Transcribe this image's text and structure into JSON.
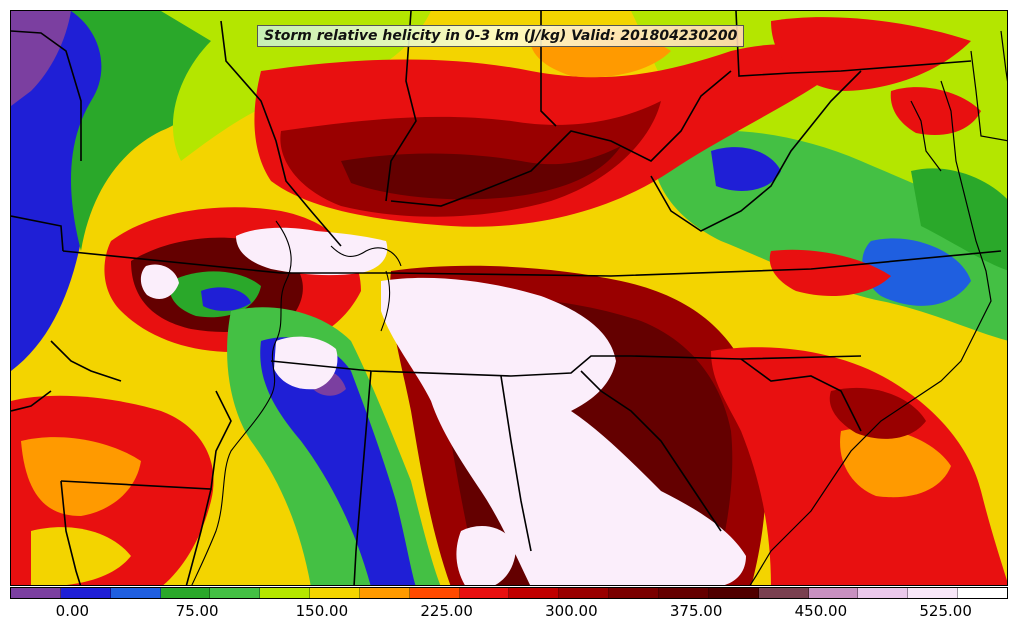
{
  "map": {
    "title": "Storm relative helicity in 0-3 km (J/kg) Valid: 201804230200"
  },
  "colorbar": {
    "colors": [
      "#7b3fa0",
      "#1f1fd6",
      "#1f5fe0",
      "#2aa82a",
      "#44c044",
      "#b4e600",
      "#f3d400",
      "#ff9a00",
      "#ff4a00",
      "#e81010",
      "#c00000",
      "#990000",
      "#7a0000",
      "#640000",
      "#500000",
      "#7a4050",
      "#c890c0",
      "#ebc8eb",
      "#f8e6f8",
      "#ffffff"
    ],
    "tick_labels": [
      "0.00",
      "75.00",
      "150.00",
      "225.00",
      "300.00",
      "375.00",
      "450.00",
      "525.00"
    ],
    "values": [
      0,
      75,
      150,
      225,
      300,
      375,
      450,
      525
    ],
    "min": -37.5,
    "max": 562.5
  },
  "fields": {
    "purple": "#7b3fa0",
    "blue": "#1f1fd6",
    "green": "#2aa82a",
    "lightgreen": "#44c044",
    "lime": "#b4e600",
    "yellow": "#f3d400",
    "orange": "#ff9a00",
    "red": "#e81010",
    "darkred": "#990000",
    "maroon": "#640000",
    "white": "#fbeefb"
  }
}
